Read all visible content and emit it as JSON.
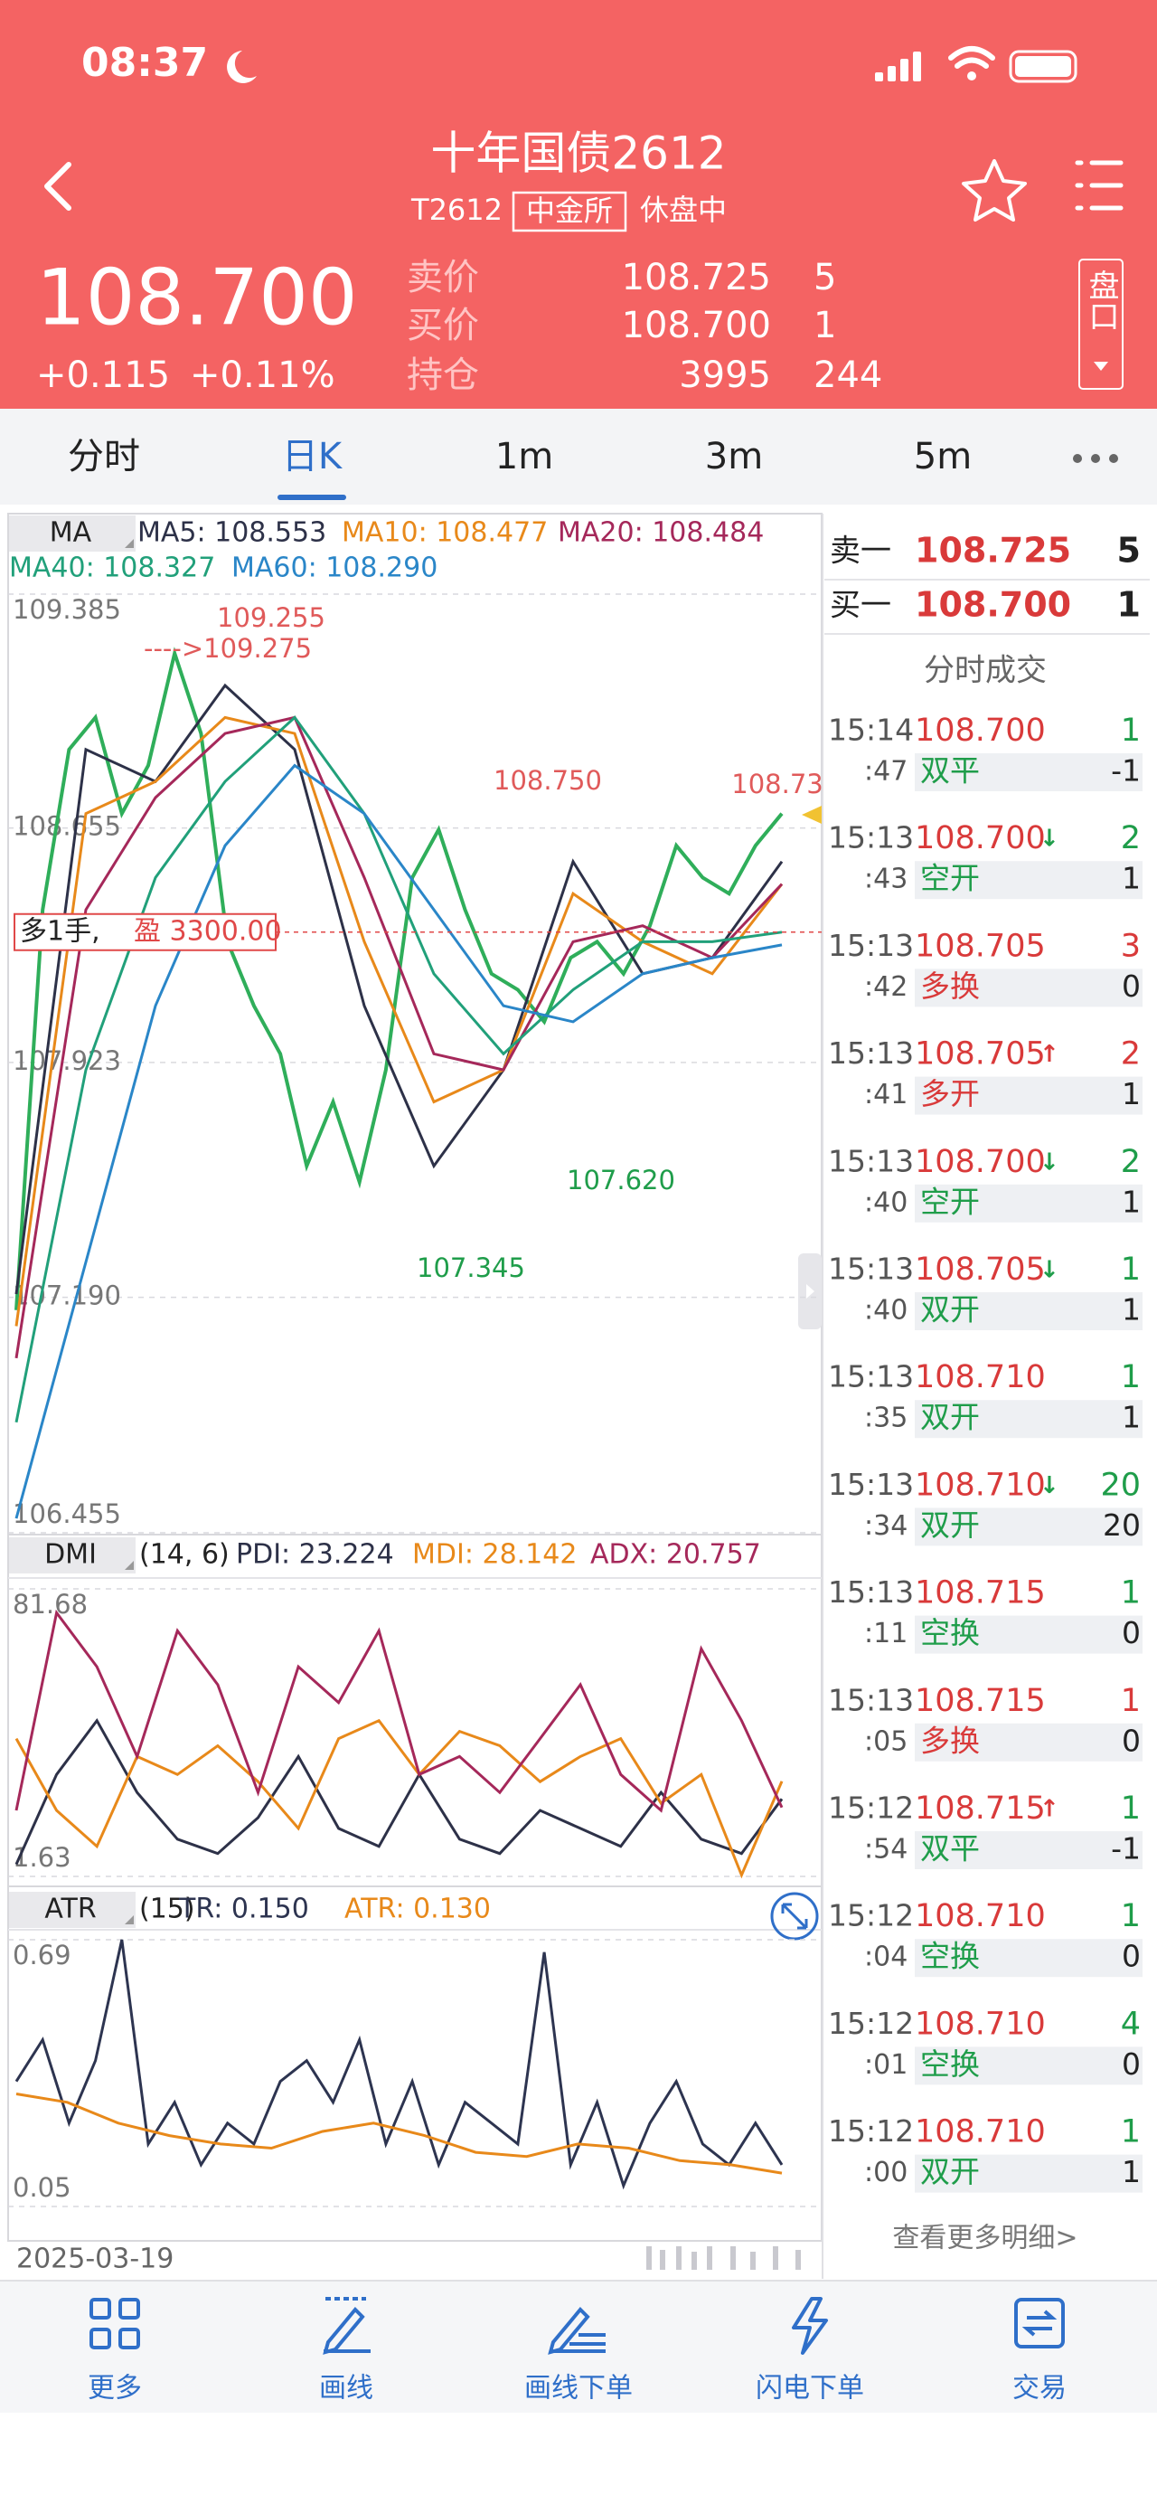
{
  "status_bar": {
    "time": "08:37"
  },
  "header": {
    "title": "十年国债2612",
    "code": "T2612",
    "exchange": "中金所",
    "status": "休盘中"
  },
  "quote": {
    "price": "108.700",
    "change": "+0.115",
    "change_pct": "+0.11%",
    "rows": [
      {
        "label": "卖价",
        "price": "108.725",
        "volume": "5"
      },
      {
        "label": "买价",
        "price": "108.700",
        "volume": "1"
      },
      {
        "label": "持仓",
        "price": "3995",
        "volume": "244"
      }
    ],
    "panel_button": "盘口"
  },
  "tabs": [
    "分时",
    "日K",
    "1m",
    "3m",
    "5m"
  ],
  "active_tab": 1,
  "chart_data": [
    {
      "type": "line",
      "indicator": "MA",
      "color": "#2fae5a",
      "values": [
        107.15,
        108.4,
        108.9,
        109.0,
        108.7,
        108.85,
        109.2,
        108.95,
        108.3,
        108.1,
        107.95,
        107.6,
        107.8,
        107.55,
        107.9,
        108.5,
        108.65,
        108.4,
        108.2,
        108.15,
        108.05,
        108.25,
        108.3,
        108.2,
        108.35,
        108.6,
        108.5,
        108.45,
        108.6,
        108.7
      ],
      "series": [
        {
          "name": "MA5: 108.553",
          "color": "#2d3148",
          "values": [
            107.2,
            108.9,
            108.8,
            109.1,
            108.9,
            108.1,
            107.6,
            107.9,
            108.55,
            108.2,
            108.25,
            108.55
          ]
        },
        {
          "name": "MA10: 108.477",
          "color": "#e8891a",
          "values": [
            107.1,
            108.7,
            108.8,
            109.0,
            108.95,
            108.3,
            107.8,
            107.9,
            108.45,
            108.3,
            108.2,
            108.48
          ]
        },
        {
          "name": "MA20: 108.484",
          "color": "#a5285a",
          "values": [
            107.0,
            108.4,
            108.75,
            108.95,
            109.0,
            108.5,
            107.95,
            107.9,
            108.3,
            108.35,
            108.25,
            108.48
          ]
        },
        {
          "name": "MA40: 108.327",
          "color": "#21a07a",
          "values": [
            106.8,
            107.9,
            108.5,
            108.8,
            109.0,
            108.7,
            108.2,
            107.95,
            108.15,
            108.3,
            108.3,
            108.33
          ]
        },
        {
          "name": "MA60: 108.290",
          "color": "#2a86c8",
          "values": [
            106.5,
            107.3,
            108.1,
            108.6,
            108.85,
            108.7,
            108.4,
            108.1,
            108.05,
            108.2,
            108.25,
            108.29
          ]
        }
      ],
      "ylim": [
        106.455,
        109.385
      ],
      "yticks": [
        109.385,
        108.655,
        107.923,
        {
          "value": 107.19,
          "label": "107.190"
        },
        106.455
      ],
      "grid": true,
      "annotations": [
        {
          "text": "109.255",
          "color": "#e05a5a"
        },
        {
          "text": "---->109.275",
          "color": "#e05a5a"
        },
        {
          "text": "108.750",
          "color": "#e05a5a"
        },
        {
          "text": "108.73",
          "color": "#e05a5a"
        },
        {
          "text": "107.620",
          "color": "#1f9d4a"
        },
        {
          "text": "107.345",
          "color": "#1f9d4a"
        }
      ],
      "position": {
        "label": "多1手,",
        "profit": "盈 3300.00",
        "value": 108.33,
        "color": "#e04848"
      }
    },
    {
      "type": "line",
      "indicator": "DMI",
      "params": "(14, 6)",
      "series": [
        {
          "name": "PDI: 23.224",
          "color": "#2d3148",
          "values": [
            5,
            30,
            45,
            25,
            12,
            8,
            18,
            35,
            15,
            10,
            30,
            12,
            8,
            20,
            15,
            10,
            25,
            12,
            8,
            23.2
          ]
        },
        {
          "name": "MDI: 28.142",
          "color": "#e8891a",
          "values": [
            40,
            20,
            10,
            35,
            30,
            38,
            28,
            15,
            40,
            45,
            30,
            42,
            38,
            28,
            35,
            40,
            22,
            30,
            2,
            28.1
          ]
        },
        {
          "name": "ADX: 20.757",
          "color": "#a5285a",
          "values": [
            20,
            75,
            60,
            35,
            70,
            55,
            25,
            60,
            50,
            70,
            30,
            35,
            25,
            40,
            55,
            30,
            20,
            65,
            45,
            20.8
          ]
        }
      ],
      "ylim": [
        1.63,
        81.68
      ],
      "yticks": [
        81.68,
        1.63
      ]
    },
    {
      "type": "line",
      "indicator": "ATR",
      "params": "(15)",
      "series": [
        {
          "name": "TR: 0.150",
          "color": "#2d3450",
          "values": [
            0.35,
            0.45,
            0.25,
            0.4,
            0.69,
            0.2,
            0.3,
            0.15,
            0.25,
            0.2,
            0.35,
            0.4,
            0.3,
            0.45,
            0.2,
            0.35,
            0.15,
            0.3,
            0.25,
            0.2,
            0.66,
            0.15,
            0.3,
            0.1,
            0.25,
            0.35,
            0.2,
            0.15,
            0.25,
            0.15
          ]
        },
        {
          "name": "ATR: 0.130",
          "color": "#e8891a",
          "values": [
            0.32,
            0.3,
            0.25,
            0.22,
            0.2,
            0.19,
            0.23,
            0.25,
            0.22,
            0.18,
            0.17,
            0.2,
            0.19,
            0.16,
            0.15,
            0.13
          ]
        }
      ],
      "ylim": [
        0.05,
        0.69
      ],
      "yticks": [
        0.69,
        0.05
      ]
    }
  ],
  "order_book": {
    "rows": [
      {
        "label": "卖一",
        "price": "108.725",
        "volume": "5"
      },
      {
        "label": "买一",
        "price": "108.700",
        "volume": "1"
      }
    ],
    "title": "分时成交",
    "trades": [
      {
        "time": "15:14",
        "sec": ":47",
        "price": "108.700",
        "arrow": "",
        "arrow_color": "#1f9d4a",
        "type": "双平",
        "color": "#1f9d4a",
        "vol": "1",
        "oi": "-1"
      },
      {
        "time": "15:13",
        "sec": ":43",
        "price": "108.700",
        "arrow": "↓",
        "arrow_color": "#1f9d4a",
        "type": "空开",
        "color": "#1f9d4a",
        "vol": "2",
        "oi": "1"
      },
      {
        "time": "15:13",
        "sec": ":42",
        "price": "108.705",
        "arrow": "",
        "arrow_color": "#d93a3a",
        "type": "多换",
        "color": "#d93a3a",
        "vol": "3",
        "oi": "0"
      },
      {
        "time": "15:13",
        "sec": ":41",
        "price": "108.705",
        "arrow": "↑",
        "arrow_color": "#d93a3a",
        "type": "多开",
        "color": "#d93a3a",
        "vol": "2",
        "oi": "1"
      },
      {
        "time": "15:13",
        "sec": ":40",
        "price": "108.700",
        "arrow": "↓",
        "arrow_color": "#1f9d4a",
        "type": "空开",
        "color": "#1f9d4a",
        "vol": "2",
        "oi": "1"
      },
      {
        "time": "15:13",
        "sec": ":40",
        "price": "108.705",
        "arrow": "↓",
        "arrow_color": "#1f9d4a",
        "type": "双开",
        "color": "#1f9d4a",
        "vol": "1",
        "oi": "1"
      },
      {
        "time": "15:13",
        "sec": ":35",
        "price": "108.710",
        "arrow": "",
        "arrow_color": "#1f9d4a",
        "type": "双开",
        "color": "#1f9d4a",
        "vol": "1",
        "oi": "1"
      },
      {
        "time": "15:13",
        "sec": ":34",
        "price": "108.710",
        "arrow": "↓",
        "arrow_color": "#1f9d4a",
        "type": "双开",
        "color": "#1f9d4a",
        "vol": "20",
        "oi": "20"
      },
      {
        "time": "15:13",
        "sec": ":11",
        "price": "108.715",
        "arrow": "",
        "arrow_color": "#1f9d4a",
        "type": "空换",
        "color": "#1f9d4a",
        "vol": "1",
        "oi": "0"
      },
      {
        "time": "15:13",
        "sec": ":05",
        "price": "108.715",
        "arrow": "",
        "arrow_color": "#d93a3a",
        "type": "多换",
        "color": "#d93a3a",
        "vol": "1",
        "oi": "0"
      },
      {
        "time": "15:12",
        "sec": ":54",
        "price": "108.715",
        "arrow": "↑",
        "arrow_color": "#d93a3a",
        "type": "双平",
        "color": "#1f9d4a",
        "vol": "1",
        "oi": "-1"
      },
      {
        "time": "15:12",
        "sec": ":04",
        "price": "108.710",
        "arrow": "",
        "arrow_color": "#1f9d4a",
        "type": "空换",
        "color": "#1f9d4a",
        "vol": "1",
        "oi": "0"
      },
      {
        "time": "15:12",
        "sec": ":01",
        "price": "108.710",
        "arrow": "",
        "arrow_color": "#1f9d4a",
        "type": "空换",
        "color": "#1f9d4a",
        "vol": "4",
        "oi": "0"
      },
      {
        "time": "15:12",
        "sec": ":00",
        "price": "108.710",
        "arrow": "",
        "arrow_color": "#1f9d4a",
        "type": "双开",
        "color": "#1f9d4a",
        "vol": "1",
        "oi": "1"
      }
    ],
    "more": "查看更多明细>"
  },
  "footer": {
    "date": "2025-03-19",
    "nav": [
      "更多",
      "画线",
      "画线下单",
      "闪电下单",
      "交易"
    ]
  }
}
